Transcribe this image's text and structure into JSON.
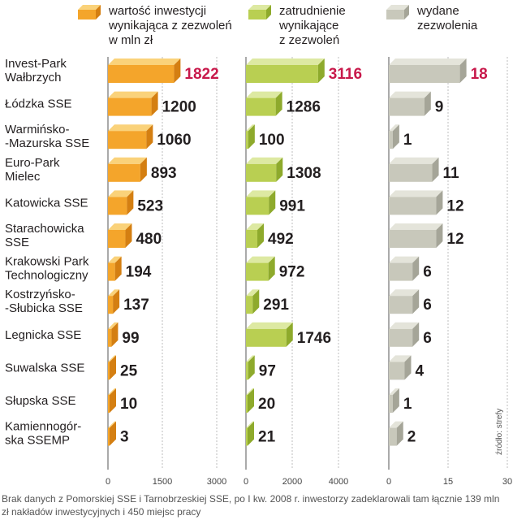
{
  "chart_data": {
    "type": "bar",
    "orientation": "horizontal",
    "categories": [
      [
        "Invest-Park",
        "Wałbrzych"
      ],
      [
        "Łódzka SSE"
      ],
      [
        "Warmińsko-",
        "-Mazurska SSE"
      ],
      [
        "Euro-Park",
        "Mielec"
      ],
      [
        "Katowicka SSE"
      ],
      [
        "Starachowicka",
        "SSE"
      ],
      [
        "Krakowski Park",
        "Technologiczny"
      ],
      [
        "Kostrzyńsko-",
        "-Słubicka SSE"
      ],
      [
        "Legnicka SSE"
      ],
      [
        "Suwalska SSE"
      ],
      [
        "Słupska SSE"
      ],
      [
        "Kamiennogór-",
        "ska SSEMP"
      ]
    ],
    "series": [
      {
        "name": [
          "wartość inwestycji",
          "wynikająca z zezwoleń",
          "w mln zł"
        ],
        "values": [
          1822,
          1200,
          1060,
          893,
          523,
          480,
          194,
          137,
          99,
          25,
          10,
          3
        ],
        "xlim": [
          0,
          3000
        ],
        "ticks": [
          "0",
          "1500",
          "3000"
        ],
        "tick_values": [
          0,
          1500,
          3000
        ],
        "colors": {
          "front": "#f4a52b",
          "top": "#fad27a",
          "side": "#d47f12"
        }
      },
      {
        "name": [
          "zatrudnienie",
          "wynikające",
          "z zezwoleń"
        ],
        "values": [
          3116,
          1286,
          100,
          1308,
          991,
          492,
          972,
          291,
          1746,
          97,
          20,
          21
        ],
        "xlim": [
          0,
          4000
        ],
        "ticks": [
          "0",
          "2000",
          "4000"
        ],
        "tick_values": [
          0,
          2000,
          4000
        ],
        "colors": {
          "front": "#b9cf52",
          "top": "#dde9a2",
          "side": "#8eaa2c"
        }
      },
      {
        "name": [
          "wydane",
          "zezwolenia"
        ],
        "values": [
          18,
          9,
          1,
          11,
          12,
          12,
          6,
          6,
          6,
          4,
          1,
          2
        ],
        "xlim": [
          0,
          30
        ],
        "ticks": [
          "0",
          "15",
          "30"
        ],
        "tick_values": [
          0,
          15,
          30
        ],
        "colors": {
          "front": "#c8c8bb",
          "top": "#e4e4da",
          "side": "#a5a598"
        }
      }
    ],
    "highlight_color": "#c8194b",
    "highlight_row": 0,
    "source": "źródło: strefy",
    "footnote": "Brak danych z Pomorskiej SSE i Tarnobrzeskiej SSE, po I kw. 2008 r. inwestorzy zadeklarowali tam łącznie 139 mln zł nakładów inwestycyjnych i 450 miejsc pracy"
  }
}
